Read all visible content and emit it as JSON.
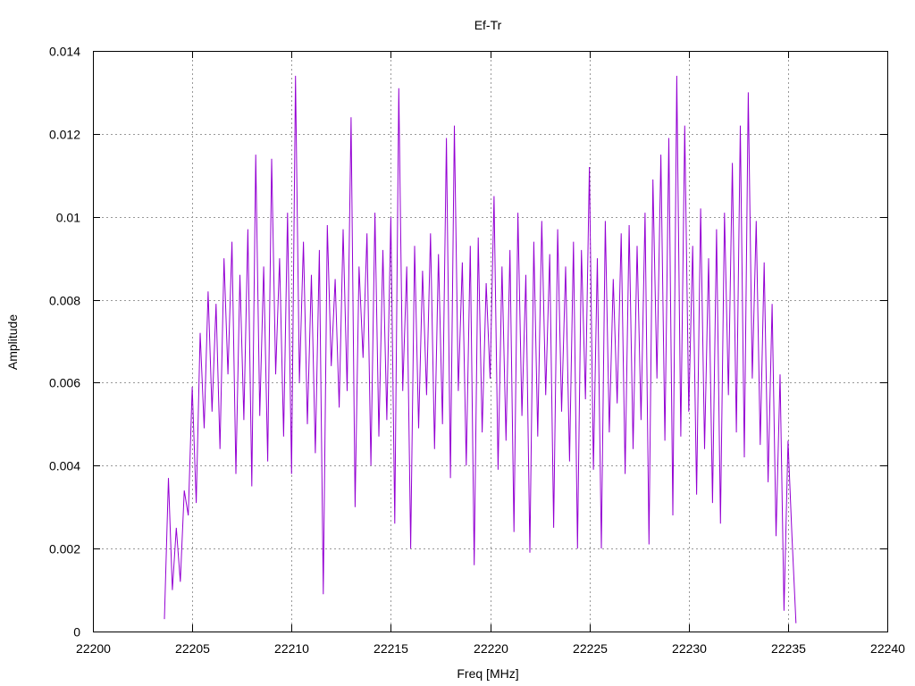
{
  "chart_data": {
    "type": "line",
    "title": "Ef-Tr",
    "xlabel": "Freq [MHz]",
    "ylabel": "Amplitude",
    "xlim": [
      22200,
      22240
    ],
    "ylim": [
      0,
      0.014
    ],
    "x_ticks": [
      "22200",
      "22205",
      "22210",
      "22215",
      "22220",
      "22225",
      "22230",
      "22235",
      "22240"
    ],
    "y_ticks": [
      "0",
      "0.002",
      "0.004",
      "0.006",
      "0.008",
      "0.01",
      "0.012",
      "0.014"
    ],
    "grid": true,
    "series_color": "#9400d3",
    "series": [
      {
        "x": [
          22203.6,
          22203.8,
          22204.0,
          22204.2,
          22204.4,
          22204.6,
          22204.8,
          22205.0,
          22205.2,
          22205.4,
          22205.6,
          22205.8,
          22206.0,
          22206.2,
          22206.4,
          22206.6,
          22206.8,
          22207.0,
          22207.2,
          22207.4,
          22207.6,
          22207.8,
          22208.0,
          22208.2,
          22208.4,
          22208.6,
          22208.8,
          22209.0,
          22209.2,
          22209.4,
          22209.6,
          22209.8,
          22210.0,
          22210.2,
          22210.4,
          22210.6,
          22210.8,
          22211.0,
          22211.2,
          22211.4,
          22211.6,
          22211.8,
          22212.0,
          22212.2,
          22212.4,
          22212.6,
          22212.8,
          22213.0,
          22213.2,
          22213.4,
          22213.6,
          22213.8,
          22214.0,
          22214.2,
          22214.4,
          22214.6,
          22214.8,
          22215.0,
          22215.2,
          22215.4,
          22215.6,
          22215.8,
          22216.0,
          22216.2,
          22216.4,
          22216.6,
          22216.8,
          22217.0,
          22217.2,
          22217.4,
          22217.6,
          22217.8,
          22218.0,
          22218.2,
          22218.4,
          22218.6,
          22218.8,
          22219.0,
          22219.2,
          22219.4,
          22219.6,
          22219.8,
          22220.0,
          22220.2,
          22220.4,
          22220.6,
          22220.8,
          22221.0,
          22221.2,
          22221.4,
          22221.6,
          22221.8,
          22222.0,
          22222.2,
          22222.4,
          22222.6,
          22222.8,
          22223.0,
          22223.2,
          22223.4,
          22223.6,
          22223.8,
          22224.0,
          22224.2,
          22224.4,
          22224.6,
          22224.8,
          22225.0,
          22225.2,
          22225.4,
          22225.6,
          22225.8,
          22226.0,
          22226.2,
          22226.4,
          22226.6,
          22226.8,
          22227.0,
          22227.2,
          22227.4,
          22227.6,
          22227.8,
          22228.0,
          22228.2,
          22228.4,
          22228.6,
          22228.8,
          22229.0,
          22229.2,
          22229.4,
          22229.6,
          22229.8,
          22230.0,
          22230.2,
          22230.4,
          22230.6,
          22230.8,
          22231.0,
          22231.2,
          22231.4,
          22231.6,
          22231.8,
          22232.0,
          22232.2,
          22232.4,
          22232.6,
          22232.8,
          22233.0,
          22233.2,
          22233.4,
          22233.6,
          22233.8,
          22234.0,
          22234.2,
          22234.4,
          22234.6,
          22234.8,
          22235.0,
          22235.2,
          22235.4
        ],
        "y": [
          0.0003,
          0.0037,
          0.001,
          0.0025,
          0.0012,
          0.0034,
          0.0028,
          0.0059,
          0.0031,
          0.0072,
          0.0049,
          0.0082,
          0.0053,
          0.0079,
          0.0044,
          0.009,
          0.0062,
          0.0094,
          0.0038,
          0.0086,
          0.0051,
          0.0097,
          0.0035,
          0.0115,
          0.0052,
          0.0088,
          0.0041,
          0.0114,
          0.0062,
          0.009,
          0.0047,
          0.0101,
          0.0038,
          0.0134,
          0.006,
          0.0094,
          0.005,
          0.0086,
          0.0043,
          0.0092,
          0.0009,
          0.0098,
          0.0064,
          0.0085,
          0.0054,
          0.0097,
          0.0058,
          0.0124,
          0.003,
          0.0088,
          0.0066,
          0.0096,
          0.004,
          0.0101,
          0.0047,
          0.0092,
          0.0051,
          0.01,
          0.0026,
          0.0131,
          0.0058,
          0.0088,
          0.002,
          0.0093,
          0.0049,
          0.0087,
          0.0057,
          0.0096,
          0.0044,
          0.0091,
          0.005,
          0.0119,
          0.0037,
          0.0122,
          0.0058,
          0.0089,
          0.004,
          0.0093,
          0.0016,
          0.0095,
          0.0048,
          0.0084,
          0.0061,
          0.0105,
          0.0039,
          0.0088,
          0.0046,
          0.0092,
          0.0024,
          0.0101,
          0.0052,
          0.0086,
          0.0019,
          0.0094,
          0.0047,
          0.0099,
          0.0057,
          0.0091,
          0.0025,
          0.0097,
          0.0053,
          0.0088,
          0.0041,
          0.0094,
          0.002,
          0.0092,
          0.0056,
          0.0112,
          0.0039,
          0.009,
          0.002,
          0.0099,
          0.0048,
          0.0085,
          0.0055,
          0.0096,
          0.0038,
          0.0098,
          0.0044,
          0.0093,
          0.0051,
          0.0101,
          0.0021,
          0.0109,
          0.0061,
          0.0115,
          0.0046,
          0.0119,
          0.0028,
          0.0134,
          0.0047,
          0.0122,
          0.0053,
          0.0093,
          0.0033,
          0.0102,
          0.0044,
          0.009,
          0.0031,
          0.0097,
          0.0026,
          0.0101,
          0.0057,
          0.0113,
          0.0048,
          0.0122,
          0.0042,
          0.013,
          0.0061,
          0.0099,
          0.0045,
          0.0089,
          0.0036,
          0.0079,
          0.0023,
          0.0062,
          0.0005,
          0.0046,
          0.0023,
          0.0002
        ]
      }
    ]
  }
}
